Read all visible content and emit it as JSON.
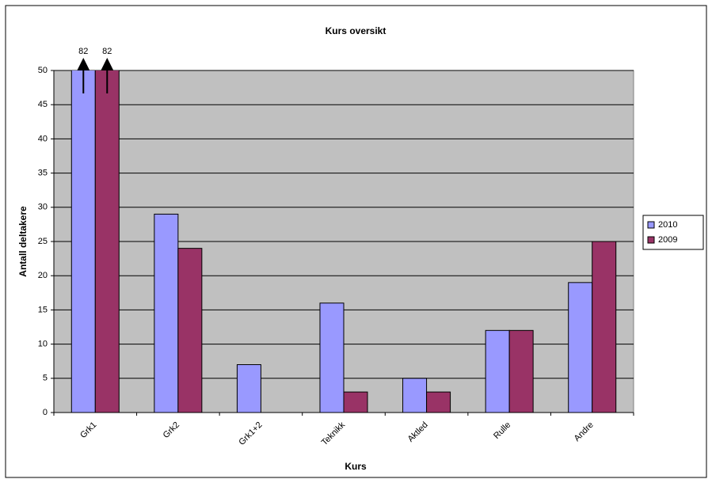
{
  "chart_data": {
    "type": "bar",
    "title": "Kurs oversikt",
    "x_label": "Kurs",
    "y_label": "Antall deltakere",
    "categories": [
      "Grk1",
      "Grk2",
      "Grk1+2",
      "Teknikk",
      "Aktled",
      "Rulle",
      "Andre"
    ],
    "series": [
      {
        "name": "2010",
        "color": "#9999ff",
        "values": [
          82,
          29,
          7,
          16,
          5,
          12,
          19
        ],
        "value_labels": [
          "82",
          null,
          null,
          null,
          null,
          null,
          null
        ]
      },
      {
        "name": "2009",
        "color": "#993366",
        "values": [
          82,
          24,
          0,
          3,
          3,
          12,
          25
        ],
        "value_labels": [
          "82",
          null,
          null,
          null,
          null,
          null,
          null
        ]
      }
    ],
    "ylim": [
      0,
      50
    ],
    "yticks": [
      0,
      5,
      10,
      15,
      20,
      25,
      30,
      35,
      40,
      45,
      50
    ],
    "grid": true,
    "legend": "right",
    "plot_background": "#c0c0c0"
  }
}
